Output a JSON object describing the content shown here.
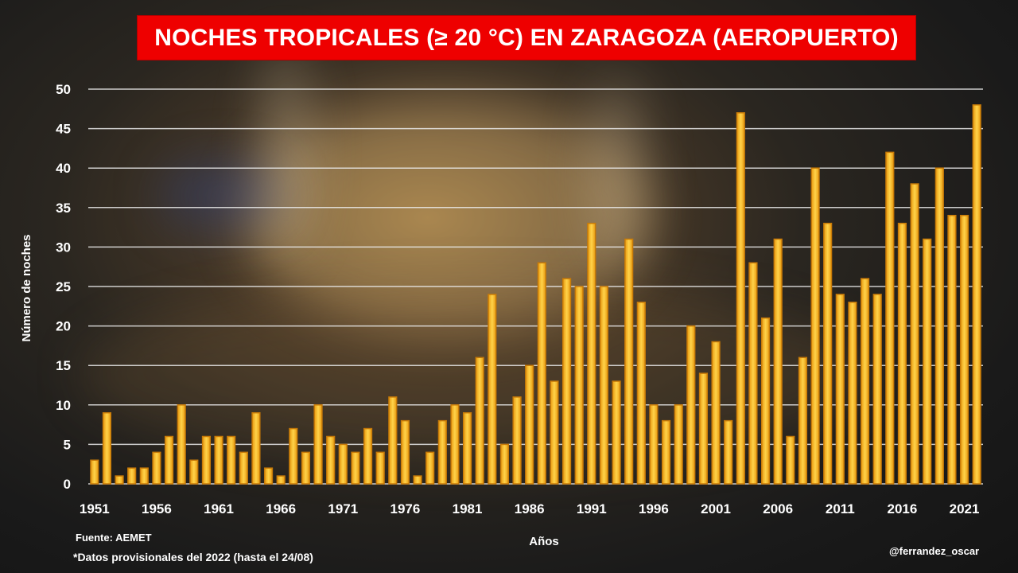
{
  "chart_data": {
    "type": "bar",
    "title": "NOCHES TROPICALES (≥ 20 °C) EN ZARAGOZA (AEROPUERTO)",
    "xlabel": "Años",
    "ylabel": "Número de noches",
    "ylim": [
      0,
      50
    ],
    "y_ticks": [
      0,
      5,
      10,
      15,
      20,
      25,
      30,
      35,
      40,
      45,
      50
    ],
    "x_tick_labels": [
      "1951",
      "1956",
      "1961",
      "1966",
      "1971",
      "1976",
      "1981",
      "1986",
      "1991",
      "1996",
      "2001",
      "2006",
      "2011",
      "2016",
      "2021"
    ],
    "grid": true,
    "bar_color": "#f7b824",
    "categories": [
      1951,
      1952,
      1953,
      1954,
      1955,
      1956,
      1957,
      1958,
      1959,
      1960,
      1961,
      1962,
      1963,
      1964,
      1965,
      1966,
      1967,
      1968,
      1969,
      1970,
      1971,
      1972,
      1973,
      1974,
      1975,
      1976,
      1977,
      1978,
      1979,
      1980,
      1981,
      1982,
      1983,
      1984,
      1985,
      1986,
      1987,
      1988,
      1989,
      1990,
      1991,
      1992,
      1993,
      1994,
      1995,
      1996,
      1997,
      1998,
      1999,
      2000,
      2001,
      2002,
      2003,
      2004,
      2005,
      2006,
      2007,
      2008,
      2009,
      2010,
      2011,
      2012,
      2013,
      2014,
      2015,
      2016,
      2017,
      2018,
      2019,
      2020,
      2021,
      2022
    ],
    "values": [
      3,
      9,
      1,
      2,
      2,
      4,
      6,
      10,
      3,
      6,
      6,
      6,
      4,
      9,
      2,
      1,
      7,
      4,
      10,
      6,
      5,
      4,
      7,
      4,
      11,
      8,
      1,
      4,
      8,
      10,
      9,
      16,
      24,
      5,
      11,
      15,
      28,
      13,
      26,
      25,
      33,
      25,
      13,
      31,
      23,
      10,
      8,
      10,
      20,
      14,
      18,
      8,
      47,
      28,
      21,
      31,
      6,
      16,
      40,
      33,
      24,
      23,
      26,
      24,
      42,
      33,
      38,
      31,
      40,
      34,
      34,
      48
    ]
  },
  "footer": {
    "source": "Fuente: AEMET",
    "note": "*Datos provisionales del 2022 (hasta el 24/08)",
    "credit": "@ferrandez_oscar"
  }
}
